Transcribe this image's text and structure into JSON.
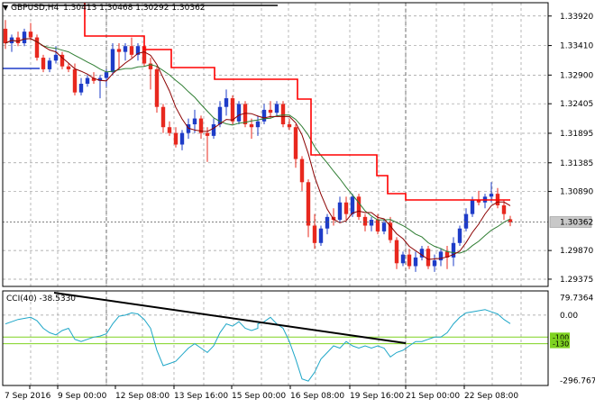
{
  "header": {
    "symbol_label": "GBPUSD,H4",
    "ohlc": "1.30413 1.30468 1.30292 1.30362"
  },
  "main_panel": {
    "price_axis_ticks": [
      "1.33920",
      "1.33410",
      "1.32900",
      "1.32405",
      "1.31895",
      "1.31385",
      "1.30890",
      "1.30362",
      "1.29870",
      "1.29375"
    ],
    "current_price": "1.30362"
  },
  "cci_panel": {
    "label": "CCI(40) -38.5330",
    "axis_ticks": [
      "79.7364",
      "0.00",
      "-100",
      "-130",
      "-296.7672"
    ]
  },
  "time_axis": {
    "labels": [
      "7 Sep 2016",
      "9 Sep 00:00",
      "12 Sep 08:00",
      "13 Sep 16:00",
      "15 Sep 00:00",
      "16 Sep 08:00",
      "19 Sep 16:00",
      "21 Sep 00:00",
      "22 Sep 08:00"
    ]
  },
  "colors": {
    "bull_candle": "#1e3cc8",
    "bear_candle": "#e8281e",
    "red_line": "#ff0000",
    "green_ma": "#2e7d32",
    "maroon_ma": "#8b0000",
    "cci_line": "#1fa7c8",
    "level_line": "#7fd321",
    "trend_line": "#000000",
    "grid": "#9a9a9a"
  },
  "chart_data": {
    "type": "candlestick",
    "symbol": "GBPUSD",
    "timeframe": "H4",
    "ylim": [
      1.2925,
      1.3415
    ],
    "candles": [
      [
        1.337,
        1.3385,
        1.3335,
        1.3345
      ],
      [
        1.3345,
        1.336,
        1.333,
        1.3355
      ],
      [
        1.3355,
        1.3365,
        1.334,
        1.3345
      ],
      [
        1.3345,
        1.337,
        1.334,
        1.3365
      ],
      [
        1.3365,
        1.338,
        1.335,
        1.3355
      ],
      [
        1.3355,
        1.336,
        1.3315,
        1.332
      ],
      [
        1.332,
        1.3325,
        1.3295,
        1.33
      ],
      [
        1.33,
        1.332,
        1.3295,
        1.3315
      ],
      [
        1.3315,
        1.334,
        1.331,
        1.3325
      ],
      [
        1.3325,
        1.333,
        1.33,
        1.3305
      ],
      [
        1.3305,
        1.331,
        1.3295,
        1.33
      ],
      [
        1.33,
        1.331,
        1.3255,
        1.326
      ],
      [
        1.326,
        1.3285,
        1.3255,
        1.3275
      ],
      [
        1.3275,
        1.329,
        1.327,
        1.3285
      ],
      [
        1.3285,
        1.3295,
        1.3275,
        1.328
      ],
      [
        1.328,
        1.329,
        1.325,
        1.3285
      ],
      [
        1.3285,
        1.33,
        1.327,
        1.3295
      ],
      [
        1.3295,
        1.3345,
        1.329,
        1.3335
      ],
      [
        1.3335,
        1.3345,
        1.33,
        1.333
      ],
      [
        1.333,
        1.3345,
        1.3315,
        1.334
      ],
      [
        1.334,
        1.3355,
        1.332,
        1.3325
      ],
      [
        1.3325,
        1.3345,
        1.3315,
        1.334
      ],
      [
        1.334,
        1.3345,
        1.3305,
        1.331
      ],
      [
        1.331,
        1.332,
        1.3265,
        1.33
      ],
      [
        1.33,
        1.3305,
        1.3225,
        1.3235
      ],
      [
        1.3235,
        1.324,
        1.319,
        1.32
      ],
      [
        1.32,
        1.321,
        1.3185,
        1.319
      ],
      [
        1.319,
        1.32,
        1.3165,
        1.317
      ],
      [
        1.317,
        1.3195,
        1.316,
        1.319
      ],
      [
        1.319,
        1.3215,
        1.318,
        1.3205
      ],
      [
        1.3205,
        1.323,
        1.319,
        1.3215
      ],
      [
        1.3215,
        1.322,
        1.318,
        1.319
      ],
      [
        1.319,
        1.32,
        1.314,
        1.3185
      ],
      [
        1.3185,
        1.3215,
        1.318,
        1.3205
      ],
      [
        1.3205,
        1.3245,
        1.32,
        1.3235
      ],
      [
        1.3235,
        1.3265,
        1.322,
        1.325
      ],
      [
        1.325,
        1.3255,
        1.3205,
        1.321
      ],
      [
        1.321,
        1.3245,
        1.3205,
        1.324
      ],
      [
        1.324,
        1.3245,
        1.32,
        1.3205
      ],
      [
        1.3205,
        1.3215,
        1.318,
        1.32
      ],
      [
        1.32,
        1.322,
        1.3185,
        1.321
      ],
      [
        1.321,
        1.324,
        1.3205,
        1.323
      ],
      [
        1.323,
        1.3245,
        1.3215,
        1.3225
      ],
      [
        1.3225,
        1.3245,
        1.322,
        1.324
      ],
      [
        1.324,
        1.3245,
        1.32,
        1.3205
      ],
      [
        1.3205,
        1.3215,
        1.3195,
        1.32
      ],
      [
        1.32,
        1.3205,
        1.313,
        1.3145
      ],
      [
        1.3145,
        1.315,
        1.309,
        1.3105
      ],
      [
        1.3105,
        1.311,
        1.301,
        1.303
      ],
      [
        1.303,
        1.305,
        1.299,
        1.3
      ],
      [
        1.3,
        1.303,
        1.2995,
        1.3025
      ],
      [
        1.3025,
        1.305,
        1.3015,
        1.3045
      ],
      [
        1.3045,
        1.306,
        1.303,
        1.304
      ],
      [
        1.304,
        1.308,
        1.3035,
        1.307
      ],
      [
        1.307,
        1.308,
        1.304,
        1.305
      ],
      [
        1.305,
        1.3085,
        1.3045,
        1.308
      ],
      [
        1.308,
        1.3085,
        1.304,
        1.3045
      ],
      [
        1.3045,
        1.305,
        1.302,
        1.303
      ],
      [
        1.303,
        1.3045,
        1.302,
        1.304
      ],
      [
        1.304,
        1.305,
        1.3015,
        1.302
      ],
      [
        1.302,
        1.304,
        1.3015,
        1.3035
      ],
      [
        1.3035,
        1.3045,
        1.3,
        1.3005
      ],
      [
        1.3005,
        1.301,
        1.2955,
        1.2965
      ],
      [
        1.2965,
        1.2985,
        1.296,
        1.298
      ],
      [
        1.298,
        1.299,
        1.2955,
        1.296
      ],
      [
        1.296,
        1.2985,
        1.295,
        1.2975
      ],
      [
        1.2975,
        1.2995,
        1.297,
        1.299
      ],
      [
        1.299,
        1.2995,
        1.2955,
        1.296
      ],
      [
        1.296,
        1.298,
        1.295,
        1.297
      ],
      [
        1.297,
        1.299,
        1.296,
        1.2985
      ],
      [
        1.2985,
        1.2995,
        1.2955,
        1.2975
      ],
      [
        1.2975,
        1.301,
        1.296,
        1.3
      ],
      [
        1.3,
        1.303,
        1.2995,
        1.3025
      ],
      [
        1.3025,
        1.306,
        1.302,
        1.305
      ],
      [
        1.305,
        1.308,
        1.3045,
        1.3075
      ],
      [
        1.3075,
        1.309,
        1.3065,
        1.307
      ],
      [
        1.307,
        1.3085,
        1.306,
        1.308
      ],
      [
        1.308,
        1.3105,
        1.307,
        1.3085
      ],
      [
        1.3085,
        1.3095,
        1.306,
        1.3065
      ],
      [
        1.3065,
        1.3075,
        1.304,
        1.305
      ],
      [
        1.3041,
        1.3047,
        1.3029,
        1.3036
      ]
    ],
    "red_stepline": [
      [
        1.3415,
        1.3415,
        1.3415,
        1.3415,
        1.3415,
        1.3415,
        1.3415,
        1.3415,
        1.3415,
        1.3415,
        1.3415,
        1.3415,
        1.3415,
        1.3415,
        1.3415,
        1.3415,
        1.3415
      ],
      "see script"
    ],
    "cci": {
      "ylim": [
        -320,
        110
      ],
      "levels": [
        -100,
        -130
      ],
      "last_value": -38.533
    }
  }
}
